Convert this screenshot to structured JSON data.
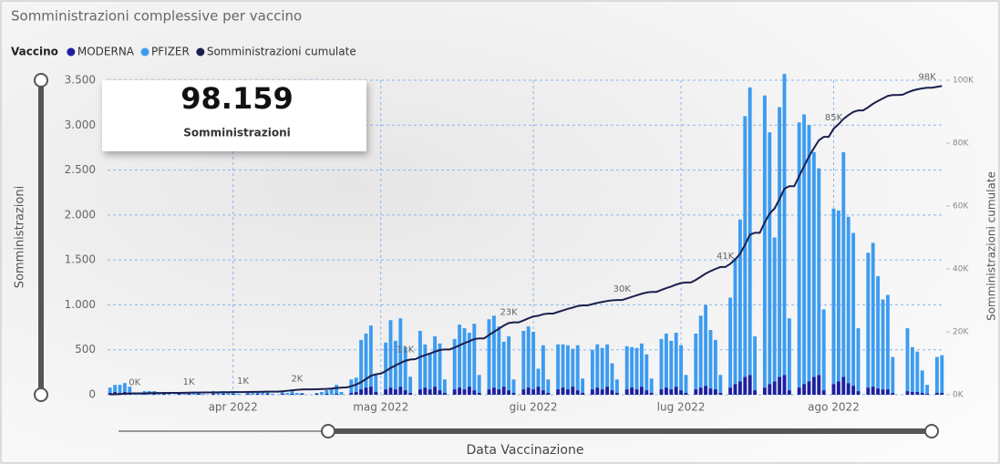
{
  "chart_data": {
    "type": "bar",
    "title": "Somministrazioni complessive per vaccino",
    "legend_title": "Vaccino",
    "ylabel": "Somministrazioni",
    "y2label": "Somministrazioni cumulate",
    "xlabel": "Data Vaccinazione",
    "card": {
      "value": "98.159",
      "caption": "Somministrazioni"
    },
    "grid": true,
    "categories": [
      null,
      null,
      null,
      null,
      null,
      null,
      null,
      null,
      null,
      null,
      null,
      null,
      null,
      null,
      null,
      null,
      null,
      null,
      null,
      null,
      null,
      null,
      null,
      null,
      null,
      "apr 2022",
      null,
      null,
      null,
      null,
      null,
      null,
      null,
      null,
      null,
      null,
      null,
      null,
      null,
      null,
      null,
      null,
      null,
      null,
      null,
      null,
      null,
      null,
      null,
      null,
      null,
      null,
      null,
      null,
      null,
      "mag 2022",
      null,
      null,
      null,
      null,
      null,
      null,
      null,
      null,
      null,
      null,
      null,
      null,
      null,
      null,
      null,
      null,
      null,
      null,
      null,
      null,
      null,
      null,
      null,
      null,
      null,
      null,
      null,
      null,
      null,
      null,
      "giu 2022",
      null,
      null,
      null,
      null,
      null,
      null,
      null,
      null,
      null,
      null,
      null,
      null,
      null,
      null,
      null,
      null,
      null,
      null,
      null,
      null,
      null,
      null,
      null,
      null,
      null,
      null,
      null,
      null,
      null,
      "lug 2022",
      null,
      null,
      null,
      null,
      null,
      null,
      null,
      null,
      null,
      null,
      null,
      null,
      null,
      null,
      null,
      null,
      null,
      null,
      null,
      null,
      null,
      null,
      null,
      null,
      null,
      null,
      null,
      null,
      null,
      null,
      "ago 2022",
      null,
      null,
      null,
      null,
      null,
      null,
      null,
      null,
      null,
      null,
      null,
      null,
      null,
      null,
      null,
      null,
      null,
      null,
      null,
      null,
      null,
      null
    ],
    "ylim": [
      0,
      3500
    ],
    "yticks": [
      0,
      500,
      {
        "value": 1000,
        "label": "1.000"
      },
      {
        "value": 1500,
        "label": "1.500"
      },
      {
        "value": 2000,
        "label": "2.000"
      },
      {
        "value": 2500,
        "label": "2.500"
      },
      {
        "value": 3000,
        "label": "3.000"
      },
      {
        "value": 3500,
        "label": "3.500"
      }
    ],
    "y2lim": [
      0,
      100000
    ],
    "y2ticks": [
      {
        "value": 0,
        "label": "0K"
      },
      {
        "value": 20000,
        "label": "20K"
      },
      {
        "value": 40000,
        "label": "40K"
      },
      {
        "value": 60000,
        "label": "60K"
      },
      {
        "value": 80000,
        "label": "80K"
      },
      {
        "value": 100000,
        "label": "100K"
      }
    ],
    "series": [
      {
        "name": "MODERNA",
        "color": "#1c1f9e",
        "values": [
          20,
          30,
          20,
          30,
          20,
          0,
          0,
          10,
          0,
          10,
          0,
          10,
          0,
          0,
          10,
          0,
          10,
          0,
          10,
          0,
          0,
          10,
          0,
          10,
          0,
          10,
          0,
          0,
          10,
          0,
          10,
          0,
          10,
          0,
          0,
          10,
          0,
          10,
          0,
          10,
          0,
          0,
          10,
          0,
          10,
          0,
          10,
          0,
          0,
          20,
          30,
          60,
          80,
          90,
          30,
          0,
          60,
          80,
          60,
          90,
          50,
          20,
          0,
          60,
          80,
          60,
          90,
          50,
          20,
          0,
          60,
          80,
          60,
          90,
          50,
          20,
          0,
          60,
          80,
          60,
          90,
          50,
          20,
          0,
          60,
          80,
          60,
          90,
          50,
          20,
          0,
          60,
          80,
          60,
          90,
          50,
          20,
          0,
          60,
          80,
          60,
          90,
          50,
          20,
          0,
          60,
          80,
          60,
          90,
          50,
          20,
          0,
          60,
          80,
          60,
          90,
          50,
          20,
          0,
          60,
          80,
          100,
          70,
          60,
          20,
          0,
          80,
          120,
          150,
          200,
          220,
          50,
          0,
          80,
          120,
          150,
          200,
          220,
          50,
          0,
          80,
          120,
          150,
          200,
          220,
          50,
          0,
          120,
          150,
          200,
          130,
          100,
          40,
          0,
          80,
          90,
          70,
          60,
          60,
          20,
          0,
          0,
          40,
          30,
          30,
          20,
          10,
          0,
          20,
          20
        ]
      },
      {
        "name": "PFIZER",
        "color": "#3d9cf0",
        "values": [
          60,
          80,
          90,
          100,
          70,
          20,
          10,
          30,
          40,
          30,
          20,
          20,
          10,
          0,
          20,
          30,
          20,
          30,
          20,
          10,
          0,
          30,
          20,
          30,
          20,
          30,
          10,
          0,
          20,
          30,
          20,
          30,
          20,
          10,
          0,
          30,
          20,
          30,
          20,
          10,
          0,
          0,
          10,
          30,
          40,
          60,
          100,
          30,
          0,
          150,
          160,
          550,
          600,
          680,
          200,
          0,
          520,
          750,
          540,
          760,
          480,
          180,
          0,
          650,
          480,
          400,
          560,
          520,
          150,
          0,
          560,
          700,
          680,
          600,
          740,
          200,
          0,
          780,
          800,
          700,
          500,
          600,
          150,
          0,
          650,
          680,
          640,
          200,
          500,
          150,
          0,
          500,
          480,
          490,
          420,
          500,
          160,
          0,
          440,
          480,
          460,
          470,
          300,
          150,
          0,
          480,
          450,
          460,
          480,
          400,
          160,
          0,
          560,
          600,
          540,
          600,
          500,
          200,
          0,
          620,
          800,
          900,
          650,
          550,
          200,
          0,
          1000,
          1400,
          1800,
          2900,
          3200,
          600,
          0,
          3250,
          2800,
          1600,
          3000,
          3350,
          800,
          0,
          2950,
          3000,
          2850,
          2500,
          2300,
          900,
          0,
          1950,
          1900,
          2500,
          1850,
          1700,
          700,
          0,
          1500,
          1600,
          1250,
          1000,
          1050,
          400,
          0,
          0,
          700,
          500,
          450,
          250,
          100,
          0,
          400,
          420
        ]
      },
      {
        "name": "Somministrazioni cumulate",
        "color": "#1b1f4e",
        "type": "line",
        "axis": "y2",
        "values": [
          60,
          140,
          230,
          330,
          400,
          420,
          420,
          450,
          490,
          520,
          540,
          560,
          570,
          570,
          590,
          620,
          650,
          680,
          700,
          710,
          710,
          730,
          760,
          780,
          810,
          830,
          840,
          840,
          870,
          900,
          920,
          950,
          970,
          980,
          980,
          1100,
          1250,
          1400,
          1550,
          1650,
          1700,
          1700,
          1750,
          1800,
          1850,
          1950,
          2150,
          2250,
          2300,
          2700,
          3200,
          4000,
          5000,
          6000,
          6500,
          6700,
          7500,
          8500,
          9300,
          10100,
          10800,
          11200,
          11300,
          12000,
          12600,
          13100,
          13700,
          14200,
          14400,
          14400,
          15000,
          15700,
          16400,
          17000,
          17700,
          17900,
          17900,
          19000,
          20000,
          21000,
          22000,
          22800,
          23000,
          23000,
          23600,
          24300,
          24900,
          25100,
          25600,
          25800,
          25800,
          26300,
          26800,
          27300,
          27700,
          28200,
          28400,
          28400,
          28800,
          29200,
          29500,
          29800,
          30000,
          30100,
          30100,
          30600,
          31100,
          31600,
          32100,
          32500,
          32700,
          32700,
          33300,
          33900,
          34400,
          35000,
          35500,
          35700,
          35700,
          36500,
          37500,
          38500,
          39300,
          40000,
          40600,
          40600,
          41600,
          43000,
          44800,
          47700,
          50900,
          51500,
          51500,
          54800,
          57600,
          59200,
          62200,
          65500,
          66300,
          66300,
          69500,
          72700,
          75800,
          78400,
          80900,
          82000,
          82000,
          84600,
          86000,
          87700,
          88900,
          89900,
          90400,
          90400,
          91400,
          92500,
          93400,
          94200,
          95000,
          95300,
          95300,
          95400,
          96100,
          96700,
          97100,
          97400,
          97600,
          97600,
          97900,
          98159
        ],
        "value_labels": [
          null,
          null,
          null,
          null,
          null,
          "0K",
          null,
          null,
          null,
          null,
          null,
          null,
          null,
          null,
          null,
          null,
          "1K",
          null,
          null,
          null,
          null,
          null,
          null,
          null,
          null,
          null,
          null,
          "1K",
          null,
          null,
          null,
          null,
          null,
          null,
          null,
          null,
          null,
          null,
          "2K",
          null,
          null,
          null,
          null,
          null,
          null,
          null,
          null,
          null,
          null,
          null,
          null,
          null,
          null,
          null,
          null,
          null,
          null,
          null,
          null,
          null,
          "11K",
          null,
          null,
          null,
          null,
          null,
          null,
          null,
          null,
          null,
          null,
          null,
          null,
          null,
          null,
          null,
          null,
          null,
          null,
          null,
          null,
          "23K",
          null,
          null,
          null,
          null,
          null,
          null,
          null,
          null,
          null,
          null,
          null,
          null,
          null,
          null,
          null,
          null,
          null,
          null,
          null,
          null,
          null,
          null,
          "30K",
          null,
          null,
          null,
          null,
          null,
          null,
          null,
          null,
          null,
          null,
          null,
          null,
          null,
          null,
          null,
          null,
          null,
          null,
          null,
          null,
          "41K",
          null,
          null,
          null,
          null,
          null,
          null,
          null,
          null,
          null,
          null,
          null,
          null,
          null,
          null,
          null,
          null,
          null,
          null,
          null,
          null,
          null,
          "85K",
          null,
          null,
          null,
          null,
          null,
          null,
          null,
          null,
          null,
          null,
          null,
          null,
          null,
          null,
          null,
          null,
          null,
          null,
          "98K",
          null,
          null,
          null
        ]
      }
    ]
  }
}
